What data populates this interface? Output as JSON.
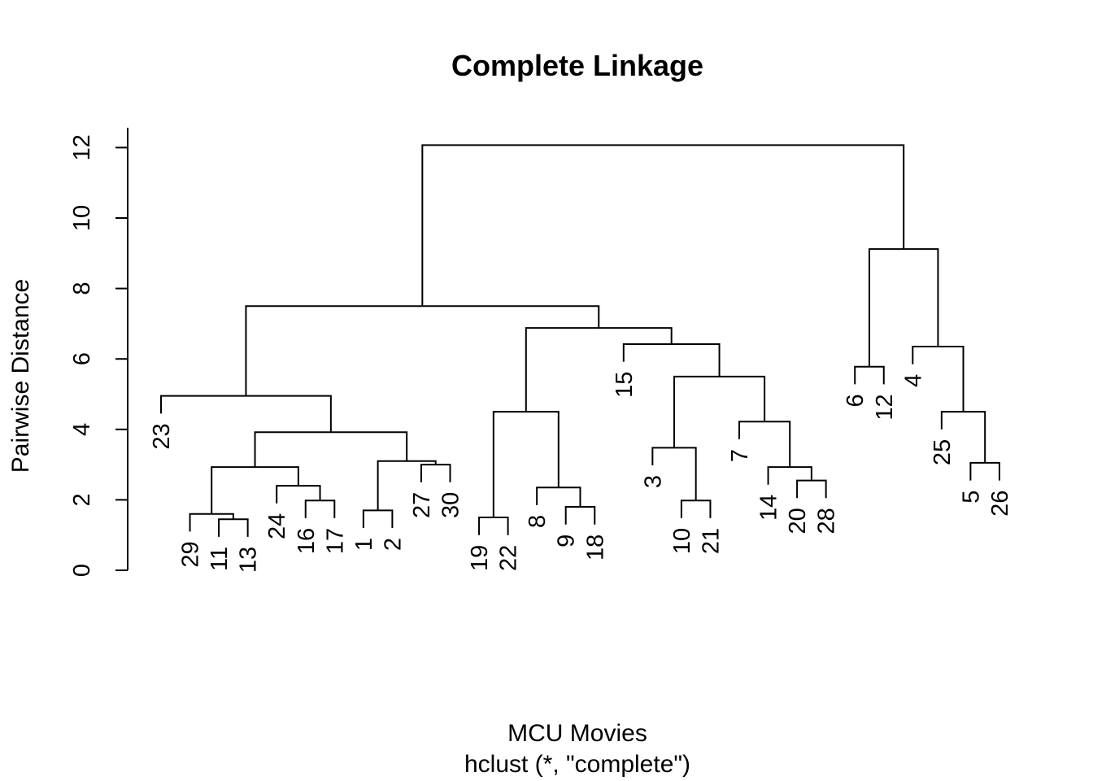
{
  "chart_data": {
    "type": "dendrogram",
    "title": "Complete Linkage",
    "xlabel": "MCU Movies",
    "sub": "hclust (*, \"complete\")",
    "ylabel": "Pairwise Distance",
    "ylim": [
      0,
      12.5
    ],
    "yticks": [
      0,
      2,
      4,
      6,
      8,
      10,
      12
    ],
    "grid": false,
    "leaf_order": [
      23,
      29,
      11,
      13,
      24,
      16,
      17,
      1,
      2,
      27,
      30,
      19,
      22,
      8,
      9,
      18,
      15,
      3,
      10,
      21,
      7,
      14,
      20,
      28,
      6,
      12,
      4,
      25,
      5,
      26
    ],
    "merges": [
      {
        "a": "11",
        "b": "13",
        "height": 1.45
      },
      {
        "a": "29",
        "b": "(11,13)",
        "height": 1.6
      },
      {
        "a": "1",
        "b": "2",
        "height": 1.7
      },
      {
        "a": "19",
        "b": "22",
        "height": 1.5
      },
      {
        "a": "9",
        "b": "18",
        "height": 1.8
      },
      {
        "a": "16",
        "b": "17",
        "height": 1.98
      },
      {
        "a": "10",
        "b": "21",
        "height": 1.98
      },
      {
        "a": "24",
        "b": "(16,17)",
        "height": 2.4
      },
      {
        "a": "8",
        "b": "(9,18)",
        "height": 2.35
      },
      {
        "a": "20",
        "b": "28",
        "height": 2.55
      },
      {
        "a": "14",
        "b": "(20,28)",
        "height": 2.93
      },
      {
        "a": "(29,(11,13))",
        "b": "(24,(16,17))",
        "height": 2.93
      },
      {
        "a": "27",
        "b": "30",
        "height": 3.0
      },
      {
        "a": "5",
        "b": "26",
        "height": 3.05
      },
      {
        "a": "(1,2)",
        "b": "(27,30)",
        "height": 3.1
      },
      {
        "a": "3",
        "b": "(10,21)",
        "height": 3.48
      },
      {
        "a": "(29..17)",
        "b": "(1..30)",
        "height": 3.92
      },
      {
        "a": "7",
        "b": "(14,(20,28))",
        "height": 4.22
      },
      {
        "a": "(19,22)",
        "b": "(8,(9,18))",
        "height": 4.5
      },
      {
        "a": "25",
        "b": "(5,26)",
        "height": 4.5
      },
      {
        "a": "23",
        "b": "(29..30)",
        "height": 4.95
      },
      {
        "a": "(3,(10,21))",
        "b": "(7..28)",
        "height": 5.5
      },
      {
        "a": "6",
        "b": "12",
        "height": 5.78
      },
      {
        "a": "4",
        "b": "(25,(5,26))",
        "height": 6.35
      },
      {
        "a": "15",
        "b": "(3..28)",
        "height": 6.42
      },
      {
        "a": "(19..18)",
        "b": "(15..28)",
        "height": 6.88
      },
      {
        "a": "(23..30)",
        "b": "(19..28)",
        "height": 7.5
      },
      {
        "a": "(6,12)",
        "b": "(4..26)",
        "height": 9.12
      },
      {
        "a": "(23..28)",
        "b": "(6..26)",
        "height": 12.07
      }
    ]
  }
}
